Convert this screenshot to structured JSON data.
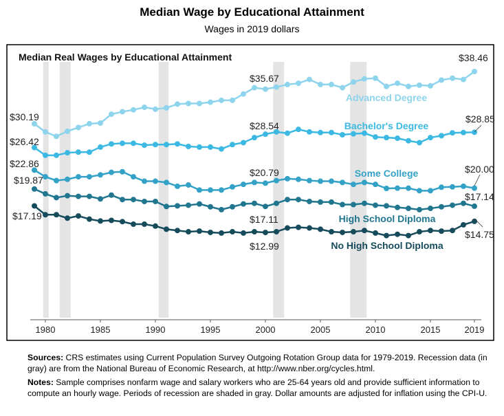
{
  "header": {
    "title": "Median Wage by Educational Attainment",
    "subtitle": "Wages in 2019 dollars"
  },
  "chart_data": {
    "type": "line",
    "title": "Median Real Wages by Educational Attainment",
    "xlabel": "",
    "ylabel": "",
    "x_ticks": [
      "1980",
      "1985",
      "1990",
      "1995",
      "2000",
      "2005",
      "2010",
      "2015",
      "2019"
    ],
    "grid": false,
    "legend": "inline labels",
    "x": [
      1979,
      1980,
      1981,
      1982,
      1983,
      1984,
      1985,
      1986,
      1987,
      1988,
      1989,
      1990,
      1991,
      1992,
      1993,
      1994,
      1995,
      1996,
      1997,
      1998,
      1999,
      2000,
      2001,
      2002,
      2003,
      2004,
      2005,
      2006,
      2007,
      2008,
      2009,
      2010,
      2011,
      2012,
      2013,
      2014,
      2015,
      2016,
      2017,
      2018,
      2019
    ],
    "series": [
      {
        "name": "Advanced Degree",
        "color": "#8dd4ec",
        "values": [
          30.19,
          28.9,
          28.2,
          29.0,
          29.6,
          30.2,
          30.3,
          31.7,
          32.1,
          32.4,
          32.8,
          32.5,
          32.7,
          33.3,
          33.4,
          33.4,
          33.6,
          33.9,
          33.9,
          34.9,
          35.9,
          35.67,
          36.0,
          36.4,
          36.6,
          37.2,
          36.4,
          36.4,
          35.9,
          36.8,
          37.3,
          37.4,
          36.1,
          36.6,
          36.1,
          36.3,
          36.2,
          37.1,
          37.4,
          37.2,
          38.46
        ]
      },
      {
        "name": "Bachelor's Degree",
        "color": "#3cb9e2",
        "values": [
          26.42,
          25.2,
          25.2,
          25.6,
          25.7,
          25.7,
          26.5,
          27.0,
          27.1,
          27.1,
          26.8,
          26.9,
          26.9,
          27.0,
          26.6,
          26.5,
          26.5,
          26.2,
          26.9,
          27.2,
          28.0,
          28.54,
          28.9,
          28.7,
          29.3,
          28.9,
          28.8,
          28.8,
          28.45,
          28.6,
          28.7,
          28.1,
          28.0,
          27.9,
          27.5,
          27.2,
          28.0,
          28.3,
          28.75,
          28.8,
          28.85
        ]
      },
      {
        "name": "Some College",
        "color": "#33a2c6",
        "values": [
          22.86,
          21.8,
          21.2,
          21.4,
          21.8,
          21.8,
          22.1,
          22.5,
          22.6,
          21.8,
          21.1,
          21.1,
          20.9,
          20.3,
          20.5,
          19.7,
          19.7,
          19.7,
          20.2,
          20.6,
          20.9,
          20.79,
          21.2,
          21.5,
          21.4,
          21.2,
          21.1,
          21.1,
          20.9,
          20.6,
          20.9,
          20.6,
          19.96,
          20.0,
          20.0,
          19.6,
          19.6,
          20.15,
          20.2,
          20.3,
          20.0
        ]
      },
      {
        "name": "High School Diploma",
        "color": "#21768f",
        "values": [
          19.87,
          19.1,
          18.5,
          18.8,
          18.7,
          18.7,
          18.3,
          18.9,
          18.2,
          18.2,
          17.9,
          17.9,
          17.1,
          17.2,
          17.3,
          17.5,
          17.05,
          16.6,
          17.05,
          17.5,
          17.6,
          17.11,
          17.6,
          18.2,
          18.2,
          17.9,
          17.8,
          17.8,
          17.4,
          17.4,
          17.6,
          17.3,
          17.2,
          16.95,
          16.8,
          16.6,
          16.8,
          17.05,
          17.3,
          17.6,
          17.14
        ]
      },
      {
        "name": "No High School Diploma",
        "color": "#164b5c",
        "values": [
          17.19,
          15.8,
          15.8,
          15.25,
          15.6,
          15.1,
          14.8,
          14.9,
          14.7,
          14.3,
          14.3,
          14.0,
          13.5,
          13.3,
          13.1,
          13.2,
          13.0,
          12.9,
          13.1,
          12.9,
          13.1,
          12.99,
          13.1,
          13.7,
          13.8,
          13.7,
          13.5,
          13.1,
          13.0,
          13.1,
          13.3,
          12.9,
          12.5,
          12.7,
          12.5,
          13.1,
          13.3,
          13.2,
          13.3,
          14.2,
          14.75
        ]
      }
    ],
    "annotations": [
      {
        "text": "$30.19",
        "series": 0,
        "x": 1979
      },
      {
        "text": "$26.42",
        "series": 1,
        "x": 1979
      },
      {
        "text": "$22.86",
        "series": 2,
        "x": 1979
      },
      {
        "text": "$19.87",
        "series": 3,
        "x": 1979
      },
      {
        "text": "$17.19",
        "series": 4,
        "x": 1979
      },
      {
        "text": "$35.67",
        "series": 0,
        "x": 2000
      },
      {
        "text": "$28.54",
        "series": 1,
        "x": 2000
      },
      {
        "text": "$20.79",
        "series": 2,
        "x": 2000
      },
      {
        "text": "$17.11",
        "series": 3,
        "x": 2000
      },
      {
        "text": "$12.99",
        "series": 4,
        "x": 2000
      },
      {
        "text": "$38.46",
        "series": 0,
        "x": 2019
      },
      {
        "text": "$28.85",
        "series": 1,
        "x": 2019
      },
      {
        "text": "$20.00",
        "series": 2,
        "x": 2019
      },
      {
        "text": "$17.14",
        "series": 3,
        "x": 2019
      },
      {
        "text": "$14.75",
        "series": 4,
        "x": 2019
      }
    ],
    "recessions": [
      [
        1979.8,
        1980.3
      ],
      [
        1981.3,
        1982.3
      ],
      [
        1990.3,
        1991.2
      ],
      [
        2000.7,
        2001.7
      ],
      [
        2007.7,
        2009.2
      ]
    ],
    "recession_color": "#e4e4e4"
  },
  "footer": {
    "sources_label": "Sources:",
    "sources_text": " CRS estimates using Current Population Survey Outgoing Rotation Group data for 1979-2019. Recession data (in gray) are from the National Bureau of Economic Research, at http://www.nber.org/cycles.html.",
    "notes_label": "Notes:",
    "notes_text": " Sample comprises nonfarm wage and salary workers who are 25-64 years old and provide sufficient information to compute an hourly wage. Periods of recession are shaded in gray. Dollar amounts are adjusted for inflation using the CPI-U."
  }
}
